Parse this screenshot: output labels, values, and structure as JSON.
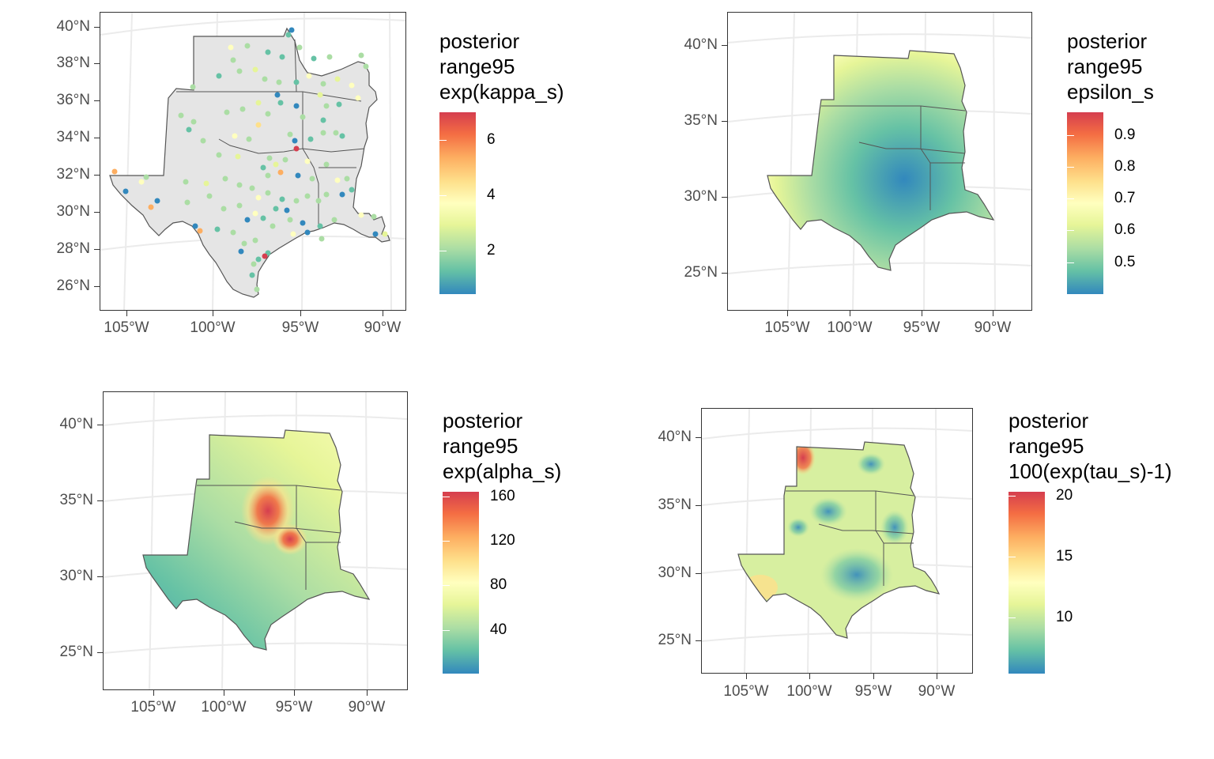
{
  "palette": [
    "#3288bd",
    "#66c2a5",
    "#abdda4",
    "#e6f598",
    "#ffffbf",
    "#fee08b",
    "#fdae61",
    "#f46d43",
    "#d53e4f"
  ],
  "map_colors": {
    "land": "#e5e5e5",
    "border": "#555555",
    "grid": "#ebebeb"
  },
  "panels": [
    {
      "id": "kappa",
      "legend": {
        "lines": [
          "posterior",
          "range95",
          "exp(kappa_s)"
        ],
        "ticks": [
          "6",
          "4",
          "2"
        ]
      },
      "y_ticks": [
        "40°N",
        "38°N",
        "36°N",
        "34°N",
        "32°N",
        "30°N",
        "28°N",
        "26°N"
      ],
      "x_ticks": [
        "105°W",
        "100°W",
        "95°W",
        "90°W"
      ]
    },
    {
      "id": "epsilon",
      "legend": {
        "lines": [
          "posterior",
          "range95",
          "epsilon_s"
        ],
        "ticks": [
          "0.9",
          "0.8",
          "0.7",
          "0.6",
          "0.5"
        ]
      },
      "y_ticks": [
        "40°N",
        "35°N",
        "30°N",
        "25°N"
      ],
      "x_ticks": [
        "105°W",
        "100°W",
        "95°W",
        "90°W"
      ]
    },
    {
      "id": "alpha",
      "legend": {
        "lines": [
          "posterior",
          "range95",
          "exp(alpha_s)"
        ],
        "ticks": [
          "160",
          "120",
          "80",
          "40"
        ]
      },
      "y_ticks": [
        "40°N",
        "35°N",
        "30°N",
        "25°N"
      ],
      "x_ticks": [
        "105°W",
        "100°W",
        "95°W",
        "90°W"
      ]
    },
    {
      "id": "tau",
      "legend": {
        "lines": [
          "posterior",
          "range95",
          "100(exp(tau_s)-1)"
        ],
        "ticks": [
          "20",
          "15",
          "10"
        ]
      },
      "y_ticks": [
        "40°N",
        "35°N",
        "30°N",
        "25°N"
      ],
      "x_ticks": [
        "105°W",
        "100°W",
        "95°W",
        "90°W"
      ]
    }
  ]
}
